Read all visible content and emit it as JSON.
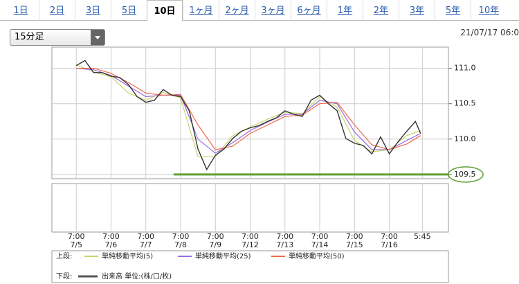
{
  "tabs": [
    "1日",
    "2日",
    "3日",
    "5日",
    "10日",
    "1ヶ月",
    "2ヶ月",
    "3ヶ月",
    "6ヶ月",
    "1年",
    "2年",
    "3年",
    "5年",
    "10年"
  ],
  "active_tab": "10日",
  "interval_select": "15分足",
  "timestamp": "21/07/17 06:0",
  "chart_data": {
    "type": "line",
    "xlim": [
      -0.7,
      10.7
    ],
    "ylim": [
      109.44,
      111.3
    ],
    "xticks": [
      {
        "value": 0,
        "label": [
          "7:00",
          "7/5"
        ]
      },
      {
        "value": 1,
        "label": [
          "7:00",
          "7/6"
        ]
      },
      {
        "value": 2,
        "label": [
          "7:00",
          "7/7"
        ]
      },
      {
        "value": 3,
        "label": [
          "7:00",
          "7/8"
        ]
      },
      {
        "value": 4,
        "label": [
          "7:00",
          "7/9"
        ]
      },
      {
        "value": 5,
        "label": [
          "7:00",
          "7/12"
        ]
      },
      {
        "value": 6,
        "label": [
          "7:00",
          "7/13"
        ]
      },
      {
        "value": 7,
        "label": [
          "7:00",
          "7/14"
        ]
      },
      {
        "value": 8,
        "label": [
          "7:00",
          "7/15"
        ]
      },
      {
        "value": 9,
        "label": [
          "7:00",
          "7/16"
        ]
      },
      {
        "value": 9.95,
        "label": [
          "5:45"
        ]
      }
    ],
    "yticks": [
      {
        "value": 111,
        "label": "111.0"
      },
      {
        "value": 110.5,
        "label": "110.5"
      },
      {
        "value": 110,
        "label": "110.0"
      },
      109.5
    ],
    "grid": true,
    "highlight": {
      "value": 109.5,
      "x_start": 2.8,
      "color": "#5e9f33"
    },
    "price": {
      "color": "#333333",
      "x": [
        0,
        0.25,
        0.5,
        0.75,
        1,
        1.25,
        1.5,
        1.75,
        2,
        2.25,
        2.5,
        2.75,
        3,
        3.25,
        3.5,
        3.75,
        4,
        4.25,
        4.5,
        4.75,
        5,
        5.25,
        5.5,
        5.75,
        6,
        6.25,
        6.5,
        6.75,
        7,
        7.25,
        7.5,
        7.75,
        8,
        8.25,
        8.5,
        8.75,
        9,
        9.25,
        9.5,
        9.75,
        9.9
      ],
      "values": [
        111.04,
        111.11,
        110.94,
        110.94,
        110.89,
        110.87,
        110.77,
        110.6,
        110.52,
        110.55,
        110.7,
        110.62,
        110.6,
        110.4,
        109.86,
        109.57,
        109.77,
        109.86,
        110.01,
        110.11,
        110.16,
        110.19,
        110.25,
        110.3,
        110.4,
        110.35,
        110.32,
        110.55,
        110.62,
        110.5,
        110.4,
        110.01,
        109.94,
        109.91,
        109.79,
        110.03,
        109.79,
        109.96,
        110.11,
        110.25,
        110.08
      ]
    },
    "upper_label": "上段:",
    "lower_label": "下段:",
    "series": [
      {
        "name": "単純移動平均(5)",
        "color": "#c5d66a",
        "x": [
          0,
          0.5,
          1,
          1.5,
          2,
          2.5,
          3,
          3.5,
          4,
          4.5,
          5,
          5.5,
          6,
          6.5,
          7,
          7.5,
          8,
          8.5,
          9,
          9.5,
          9.9
        ],
        "values": [
          111.05,
          110.95,
          110.88,
          110.65,
          110.55,
          110.66,
          110.58,
          109.75,
          109.75,
          110.05,
          110.17,
          110.28,
          110.38,
          110.36,
          110.6,
          110.45,
          109.98,
          109.82,
          109.85,
          110.05,
          110.12
        ]
      },
      {
        "name": "単純移動平均(25)",
        "color": "#9b6de0",
        "x": [
          0,
          0.5,
          1,
          1.5,
          2,
          2.5,
          3,
          3.5,
          4,
          4.5,
          5,
          5.5,
          6,
          6.5,
          7,
          7.5,
          8,
          8.5,
          9,
          9.5,
          9.9
        ],
        "values": [
          111.0,
          110.98,
          110.9,
          110.75,
          110.6,
          110.62,
          110.62,
          110.0,
          109.8,
          109.95,
          110.12,
          110.24,
          110.35,
          110.35,
          110.55,
          110.5,
          110.1,
          109.85,
          109.85,
          109.98,
          110.08
        ]
      },
      {
        "name": "単純移動平均(50)",
        "color": "#ee6a4c",
        "x": [
          0,
          0.5,
          1,
          1.5,
          2,
          2.5,
          3,
          3.5,
          4,
          4.5,
          5,
          5.5,
          6,
          6.5,
          7,
          7.5,
          8,
          8.5,
          9,
          9.5,
          9.9
        ],
        "values": [
          111.0,
          111.0,
          110.93,
          110.8,
          110.65,
          110.62,
          110.63,
          110.2,
          109.85,
          109.9,
          110.08,
          110.2,
          110.32,
          110.34,
          110.5,
          110.52,
          110.2,
          109.92,
          109.85,
          109.93,
          110.05
        ]
      }
    ],
    "volume": {
      "name": "出来高 単位:(株/口/枚)",
      "color": "#555555"
    }
  }
}
